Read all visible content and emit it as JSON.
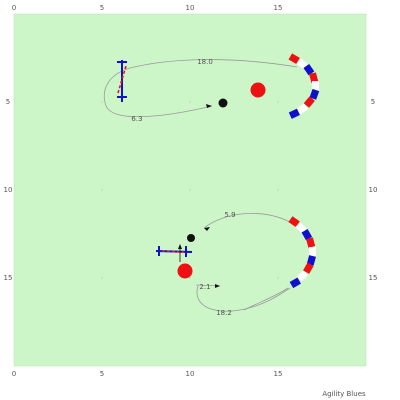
{
  "brand": "Agility Blues",
  "axis": {
    "top_ticks": [
      "0",
      "5",
      "10",
      "15"
    ],
    "bottom_ticks": [
      "0",
      "5",
      "10",
      "15"
    ],
    "left_ticks": [
      "5",
      "10",
      "15"
    ],
    "right_ticks": [
      "5",
      "10",
      "15"
    ]
  },
  "path_labels": [
    "18.0",
    "6.3",
    "5.9",
    "2.1",
    "18.2"
  ],
  "colors": {
    "field": "#ccf5c8",
    "path": "#9a9a9a",
    "red": "#ee1111",
    "blue": "#1111cc",
    "black": "#111111"
  }
}
